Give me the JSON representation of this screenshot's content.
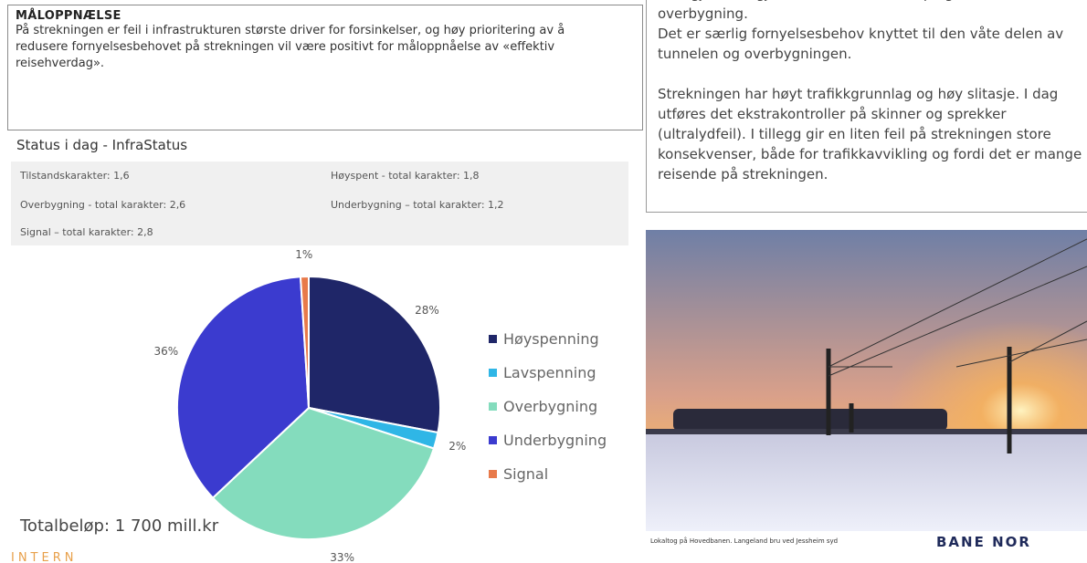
{
  "goal": {
    "title": "MÅLOPPNÆLSE",
    "text": "På strekningen er feil i infrastrukturen største driver for forsinkelser, og høy prioritering av å redusere fornyelsesbehovet på strekningen vil være positivt for måloppnåelse av «effektiv reisehverdag»."
  },
  "notes": {
    "paragraphs": [
      "som gjør at vi gjennom tid har fått feil på grunn av overbygning.",
      "Det er særlig fornyelsesbehov knyttet til den våte delen av tunnelen og overbygningen.",
      "Strekningen har høyt trafikkgrunnlag og høy slitasje. I dag utføres det ekstrakontroller på skinner og sprekker (ultralydfeil). I tillegg gir en liten feil på strekningen store konsekvenser, både for trafikkavvikling og fordi det er mange reisende på strekningen."
    ]
  },
  "status": {
    "title": "Status i dag - InfraStatus",
    "items": [
      "Tilstandskarakter: 1,6",
      "Høyspent - total karakter: 1,8",
      "Overbygning - total karakter: 2,6",
      "Underbygning – total karakter: 1,2",
      "Signal – total karakter: 2,8"
    ]
  },
  "total": "Totalbeløp: 1 700 mill.kr",
  "classification": "INTERN",
  "photo": {
    "caption": "Lokaltog på Hovedbanen. Langeland bru ved Jessheim syd",
    "logo": "BANE NOR"
  },
  "chart_data": {
    "type": "pie",
    "categories": [
      "Høyspenning",
      "Lavspenning",
      "Overbygning",
      "Underbygning",
      "Signal"
    ],
    "values": [
      28,
      2,
      33,
      36,
      1
    ],
    "value_labels": [
      "28%",
      "2%",
      "33%",
      "36%",
      "1%"
    ],
    "colors": [
      "#1f2668",
      "#2fb6e6",
      "#84dcbd",
      "#3b3bcf",
      "#e87a4a"
    ]
  }
}
